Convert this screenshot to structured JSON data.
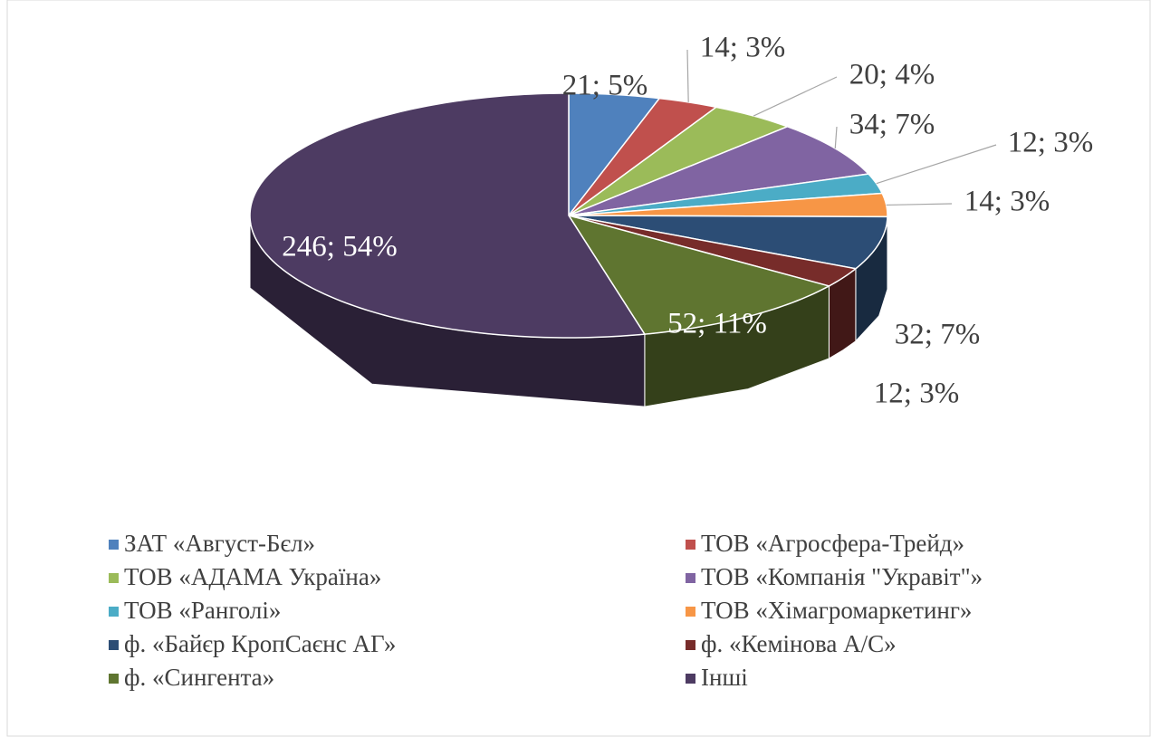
{
  "chart_data": {
    "type": "pie",
    "categories": [
      "ЗАТ «Август-Бєл»",
      "ТОВ «Агросфера-Трейд»",
      "ТОВ «АДАМА Україна»",
      "ТОВ «Компанія \"Укравіт\"»",
      "ТОВ «Ранголі»",
      "ТОВ «Хімагромаркетинг»",
      "ф. «Байєр КропСаєнс АГ»",
      "ф. «Кемінова А/С»",
      "ф. «Сингента»",
      "Інші"
    ],
    "values": [
      21,
      14,
      20,
      34,
      12,
      14,
      32,
      12,
      52,
      246
    ],
    "value_labels": [
      "21; 5%",
      "14; 3%",
      "20; 4%",
      "34; 7%",
      "12; 3%",
      "14; 3%",
      "32; 7%",
      "12; 3%",
      "52; 11%",
      "246; 54%"
    ],
    "colors": [
      "#4f81bd",
      "#c0504d",
      "#9bbb59",
      "#8064a2",
      "#4bacc6",
      "#f79646",
      "#2c4d75",
      "#772c2a",
      "#5f7530",
      "#4d3b62"
    ],
    "legend": "bottom"
  }
}
